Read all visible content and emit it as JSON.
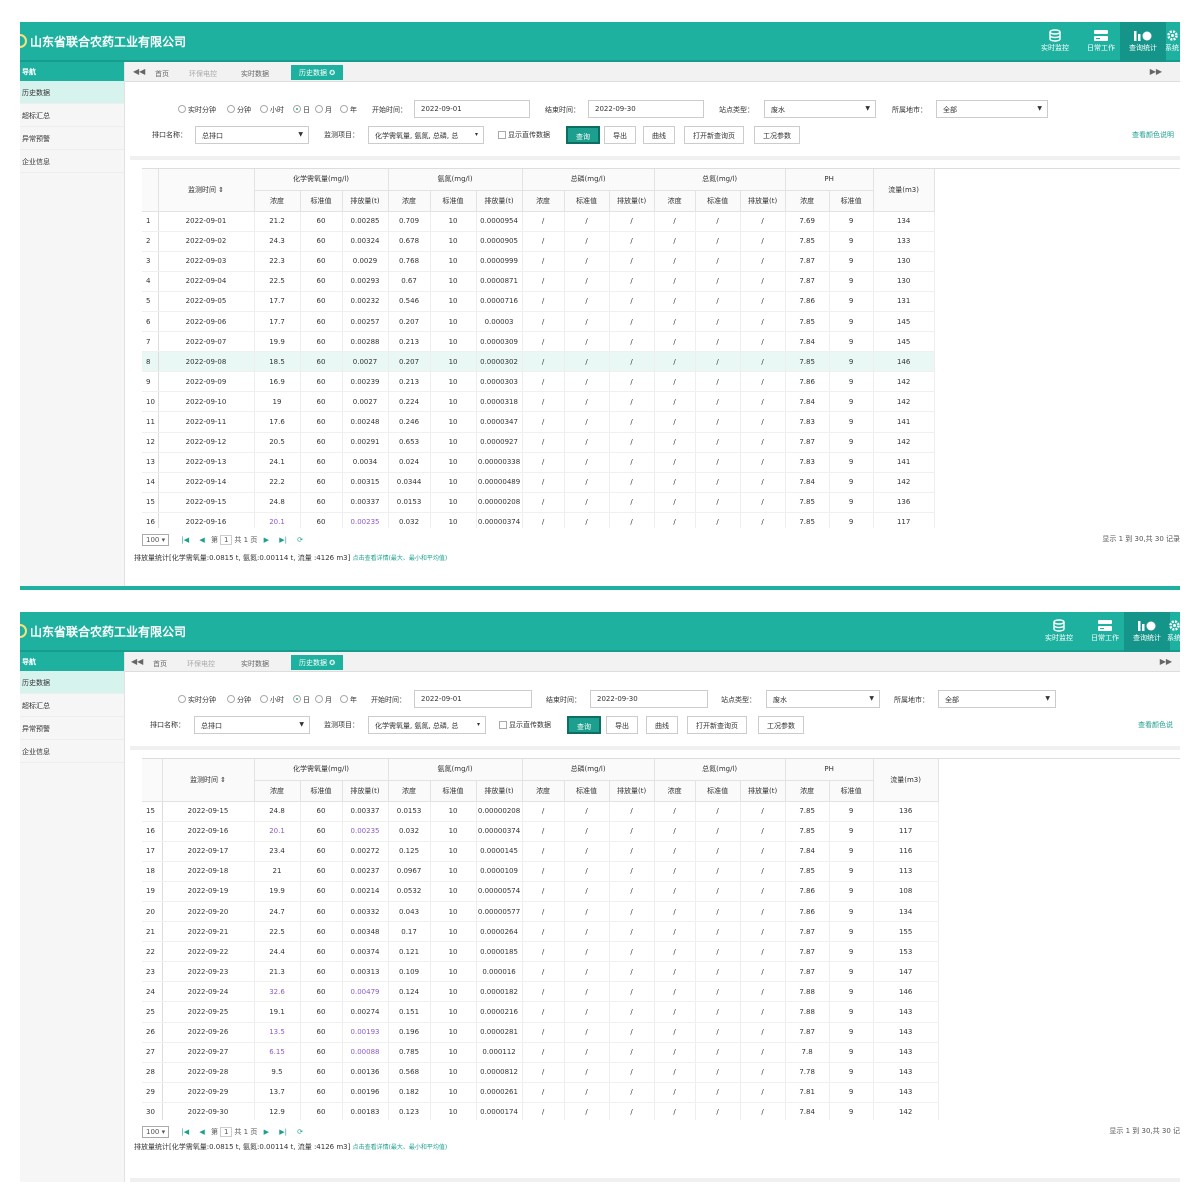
{
  "app": {
    "company": "山东省联合农药工业有限公司"
  },
  "topbar": [
    {
      "label": "实时监控",
      "icon": "database-icon"
    },
    {
      "label": "日常工作",
      "icon": "server-stack-icon"
    },
    {
      "label": "查询统计",
      "icon": "chart-icon"
    },
    {
      "label": "系统",
      "icon": "gear-icon"
    }
  ],
  "sidebar": {
    "title": "导航",
    "items": [
      "历史数据",
      "超标汇总",
      "异常预警",
      "企业信息"
    ]
  },
  "tabs": [
    "首页",
    "环保电控",
    "实时数据",
    "历史数据 ✪"
  ],
  "nav": {
    "left": "◀◀",
    "right": "▶▶"
  },
  "filter": {
    "radios": [
      "实时分钟",
      "分钟",
      "小时",
      "日",
      "月",
      "年"
    ],
    "start_label": "开始时间：",
    "start_value": "2022-09-01",
    "end_label": "结束时间：",
    "end_value": "2022-09-30",
    "station_label": "站点类型：",
    "station_value": "废水",
    "region_label": "所属地市：",
    "region_value": "全部",
    "outlet_label": "排口名称：",
    "outlet_value": "总排口",
    "items_label": "监测项目：",
    "items_value": "化学需氧量, 氨氮, 总磷, 总",
    "show_straight": "显示直传数据",
    "query": "查询",
    "export": "导出",
    "curve": "曲线",
    "open_new": "打开新查询页",
    "condition": "工况参数",
    "color_help_1": "查看颜色说明",
    "color_help_2": "查看颜色说"
  },
  "table": {
    "time_header": "监测时间 ⇕",
    "groups": [
      "化学需氧量(mg/l)",
      "氨氮(mg/l)",
      "总磷(mg/l)",
      "总氮(mg/l)",
      "PH",
      "流量(m3)"
    ],
    "sub_a": [
      "浓度",
      "标准值",
      "排放量(t)"
    ],
    "sub_b": [
      "浓度",
      "标准值"
    ],
    "rows": [
      [
        "1",
        "2022-09-01",
        "21.2",
        "60",
        "0.00285",
        "0.709",
        "10",
        "0.0000954",
        "/",
        "/",
        "/",
        "/",
        "/",
        "/",
        "7.69",
        "9",
        "134"
      ],
      [
        "2",
        "2022-09-02",
        "24.3",
        "60",
        "0.00324",
        "0.678",
        "10",
        "0.0000905",
        "/",
        "/",
        "/",
        "/",
        "/",
        "/",
        "7.85",
        "9",
        "133"
      ],
      [
        "3",
        "2022-09-03",
        "22.3",
        "60",
        "0.0029",
        "0.768",
        "10",
        "0.0000999",
        "/",
        "/",
        "/",
        "/",
        "/",
        "/",
        "7.87",
        "9",
        "130"
      ],
      [
        "4",
        "2022-09-04",
        "22.5",
        "60",
        "0.00293",
        "0.67",
        "10",
        "0.0000871",
        "/",
        "/",
        "/",
        "/",
        "/",
        "/",
        "7.87",
        "9",
        "130"
      ],
      [
        "5",
        "2022-09-05",
        "17.7",
        "60",
        "0.00232",
        "0.546",
        "10",
        "0.0000716",
        "/",
        "/",
        "/",
        "/",
        "/",
        "/",
        "7.86",
        "9",
        "131"
      ],
      [
        "6",
        "2022-09-06",
        "17.7",
        "60",
        "0.00257",
        "0.207",
        "10",
        "0.00003",
        "/",
        "/",
        "/",
        "/",
        "/",
        "/",
        "7.85",
        "9",
        "145"
      ],
      [
        "7",
        "2022-09-07",
        "19.9",
        "60",
        "0.00288",
        "0.213",
        "10",
        "0.0000309",
        "/",
        "/",
        "/",
        "/",
        "/",
        "/",
        "7.84",
        "9",
        "145"
      ],
      [
        "8",
        "2022-09-08",
        "18.5",
        "60",
        "0.0027",
        "0.207",
        "10",
        "0.0000302",
        "/",
        "/",
        "/",
        "/",
        "/",
        "/",
        "7.85",
        "9",
        "146"
      ],
      [
        "9",
        "2022-09-09",
        "16.9",
        "60",
        "0.00239",
        "0.213",
        "10",
        "0.0000303",
        "/",
        "/",
        "/",
        "/",
        "/",
        "/",
        "7.86",
        "9",
        "142"
      ],
      [
        "10",
        "2022-09-10",
        "19",
        "60",
        "0.0027",
        "0.224",
        "10",
        "0.0000318",
        "/",
        "/",
        "/",
        "/",
        "/",
        "/",
        "7.84",
        "9",
        "142"
      ],
      [
        "11",
        "2022-09-11",
        "17.6",
        "60",
        "0.00248",
        "0.246",
        "10",
        "0.0000347",
        "/",
        "/",
        "/",
        "/",
        "/",
        "/",
        "7.83",
        "9",
        "141"
      ],
      [
        "12",
        "2022-09-12",
        "20.5",
        "60",
        "0.00291",
        "0.653",
        "10",
        "0.0000927",
        "/",
        "/",
        "/",
        "/",
        "/",
        "/",
        "7.87",
        "9",
        "142"
      ],
      [
        "13",
        "2022-09-13",
        "24.1",
        "60",
        "0.0034",
        "0.024",
        "10",
        "0.00000338",
        "/",
        "/",
        "/",
        "/",
        "/",
        "/",
        "7.83",
        "9",
        "141"
      ],
      [
        "14",
        "2022-09-14",
        "22.2",
        "60",
        "0.00315",
        "0.0344",
        "10",
        "0.00000489",
        "/",
        "/",
        "/",
        "/",
        "/",
        "/",
        "7.84",
        "9",
        "142"
      ],
      [
        "15",
        "2022-09-15",
        "24.8",
        "60",
        "0.00337",
        "0.0153",
        "10",
        "0.00000208",
        "/",
        "/",
        "/",
        "/",
        "/",
        "/",
        "7.85",
        "9",
        "136"
      ],
      [
        "16",
        "2022-09-16",
        "20.1",
        "60",
        "0.00235",
        "0.032",
        "10",
        "0.00000374",
        "/",
        "/",
        "/",
        "/",
        "/",
        "/",
        "7.85",
        "9",
        "117"
      ],
      [
        "17",
        "2022-09-17",
        "23.4",
        "60",
        "0.00272",
        "0.125",
        "10",
        "0.0000145",
        "/",
        "/",
        "/",
        "/",
        "/",
        "/",
        "7.84",
        "9",
        "116"
      ],
      [
        "18",
        "2022-09-18",
        "21",
        "60",
        "0.00237",
        "0.0967",
        "10",
        "0.0000109",
        "/",
        "/",
        "/",
        "/",
        "/",
        "/",
        "7.85",
        "9",
        "113"
      ],
      [
        "19",
        "2022-09-19",
        "19.9",
        "60",
        "0.00214",
        "0.0532",
        "10",
        "0.00000574",
        "/",
        "/",
        "/",
        "/",
        "/",
        "/",
        "7.86",
        "9",
        "108"
      ],
      [
        "20",
        "2022-09-20",
        "24.7",
        "60",
        "0.00332",
        "0.043",
        "10",
        "0.00000577",
        "/",
        "/",
        "/",
        "/",
        "/",
        "/",
        "7.86",
        "9",
        "134"
      ],
      [
        "21",
        "2022-09-21",
        "22.5",
        "60",
        "0.00348",
        "0.17",
        "10",
        "0.0000264",
        "/",
        "/",
        "/",
        "/",
        "/",
        "/",
        "7.87",
        "9",
        "155"
      ],
      [
        "22",
        "2022-09-22",
        "24.4",
        "60",
        "0.00374",
        "0.121",
        "10",
        "0.0000185",
        "/",
        "/",
        "/",
        "/",
        "/",
        "/",
        "7.87",
        "9",
        "153"
      ],
      [
        "23",
        "2022-09-23",
        "21.3",
        "60",
        "0.00313",
        "0.109",
        "10",
        "0.000016",
        "/",
        "/",
        "/",
        "/",
        "/",
        "/",
        "7.87",
        "9",
        "147"
      ],
      [
        "24",
        "2022-09-24",
        "32.6",
        "60",
        "0.00479",
        "0.124",
        "10",
        "0.0000182",
        "/",
        "/",
        "/",
        "/",
        "/",
        "/",
        "7.88",
        "9",
        "146"
      ],
      [
        "25",
        "2022-09-25",
        "19.1",
        "60",
        "0.00274",
        "0.151",
        "10",
        "0.0000216",
        "/",
        "/",
        "/",
        "/",
        "/",
        "/",
        "7.88",
        "9",
        "143"
      ],
      [
        "26",
        "2022-09-26",
        "13.5",
        "60",
        "0.00193",
        "0.196",
        "10",
        "0.0000281",
        "/",
        "/",
        "/",
        "/",
        "/",
        "/",
        "7.87",
        "9",
        "143"
      ],
      [
        "27",
        "2022-09-27",
        "6.15",
        "60",
        "0.00088",
        "0.785",
        "10",
        "0.000112",
        "/",
        "/",
        "/",
        "/",
        "/",
        "/",
        "7.8",
        "9",
        "143"
      ],
      [
        "28",
        "2022-09-28",
        "9.5",
        "60",
        "0.00136",
        "0.568",
        "10",
        "0.0000812",
        "/",
        "/",
        "/",
        "/",
        "/",
        "/",
        "7.78",
        "9",
        "143"
      ],
      [
        "29",
        "2022-09-29",
        "13.7",
        "60",
        "0.00196",
        "0.182",
        "10",
        "0.0000261",
        "/",
        "/",
        "/",
        "/",
        "/",
        "/",
        "7.81",
        "9",
        "143"
      ],
      [
        "30",
        "2022-09-30",
        "12.9",
        "60",
        "0.00183",
        "0.123",
        "10",
        "0.0000174",
        "/",
        "/",
        "/",
        "/",
        "/",
        "/",
        "7.84",
        "9",
        "142"
      ]
    ],
    "purple_rows": [
      "16",
      "24",
      "26",
      "27"
    ]
  },
  "pager": {
    "page_size": "100 ▾",
    "page_label": "第",
    "page_value": "1",
    "total_pages": "共 1 页",
    "info_1": "显示 1 到 30,共 30 记录",
    "info_2": "显示 1 到 30,共 30 记"
  },
  "stats": {
    "text": "排放量统计[化学需氧量:0.0815 t, 氨氮:0.00114 t, 流量 :4126 m3]",
    "link": "点击查看详情(最大、最小和平均值)"
  },
  "colors": {
    "brand": "#1fb1a0",
    "button": "#1d9f8f",
    "purple": "#8c5bc9"
  }
}
